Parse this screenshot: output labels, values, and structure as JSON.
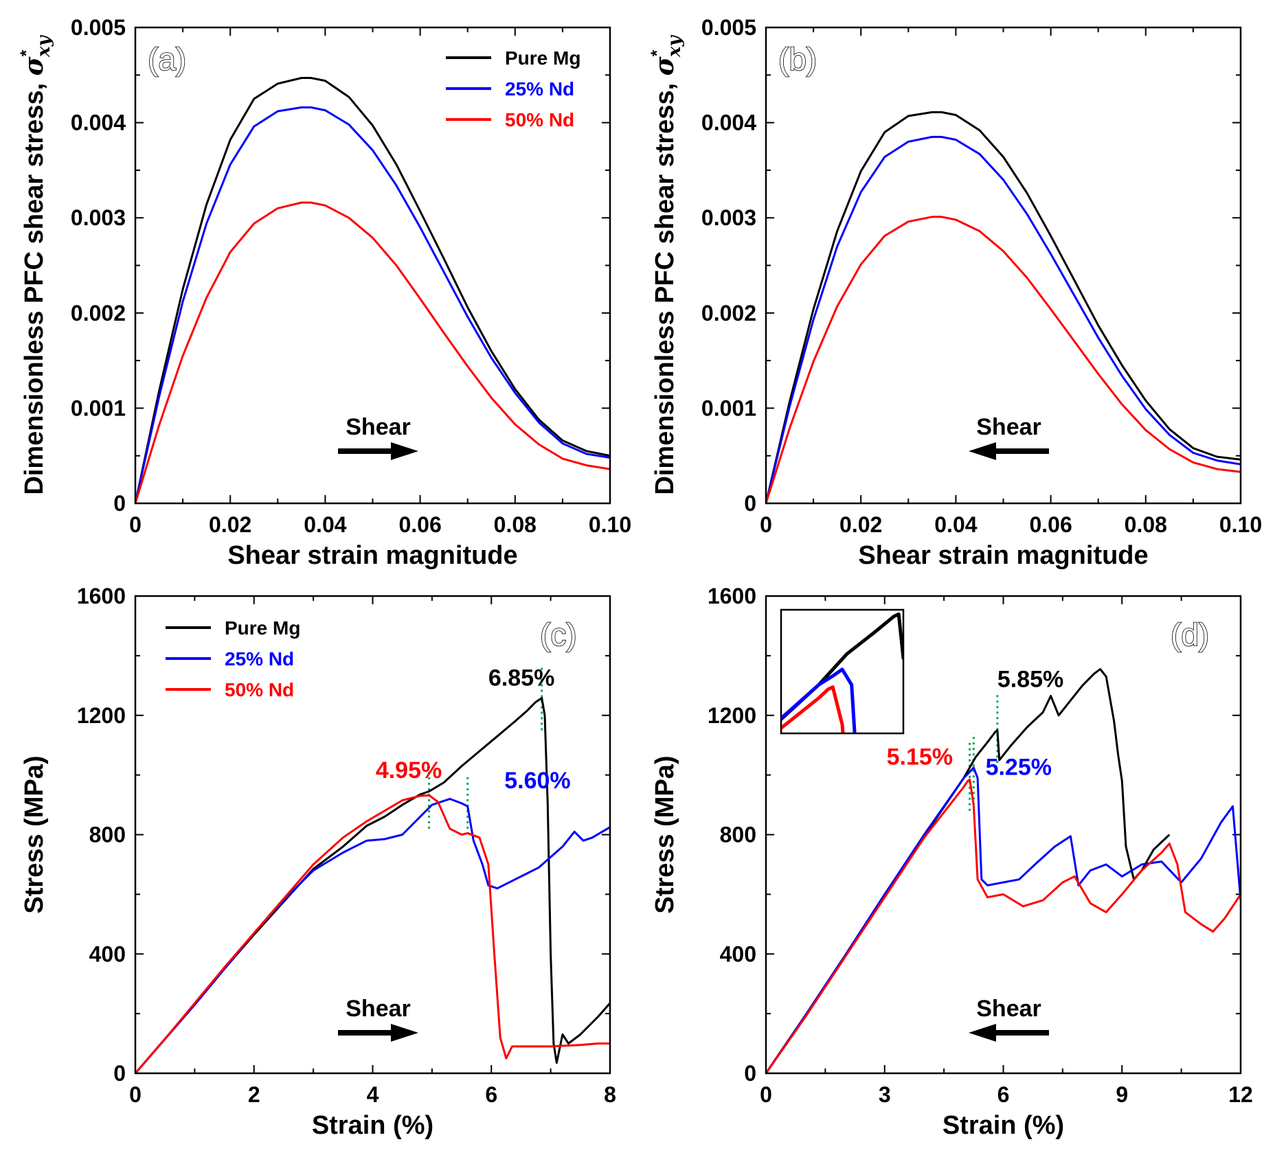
{
  "figure": {
    "colors": {
      "pure_mg": "#000000",
      "nd25": "#0000ff",
      "nd50": "#ff0000",
      "guide": "#00a550"
    }
  },
  "chart_data": [
    {
      "id": "a",
      "type": "line",
      "panel_label": "(a)",
      "xlabel": "Shear strain magnitude",
      "ylabel": "Dimensionless PFC shear stress, σ*xy",
      "ylabel_main": "Dimensionless PFC shear stress, ",
      "ylabel_sym": "σ",
      "ylabel_sup": "*",
      "ylabel_sub": "xy",
      "xlim": [
        0,
        0.1
      ],
      "ylim": [
        0,
        0.005
      ],
      "xticks": [
        0,
        0.02,
        0.04,
        0.06,
        0.08,
        0.1
      ],
      "xtick_labels": [
        "0",
        "0.02",
        "0.04",
        "0.06",
        "0.08",
        "0.10"
      ],
      "yticks": [
        0,
        0.001,
        0.002,
        0.003,
        0.004,
        0.005
      ],
      "ytick_labels": [
        "0",
        "0.001",
        "0.002",
        "0.003",
        "0.004",
        "0.005"
      ],
      "legend": {
        "position": "top-right",
        "entries": [
          "Pure Mg",
          "25% Nd",
          "50% Nd"
        ]
      },
      "shear_arrow": {
        "label": "Shear",
        "direction": "right"
      },
      "series": [
        {
          "name": "Pure Mg",
          "color": "#000000",
          "x": [
            0,
            0.005,
            0.01,
            0.015,
            0.02,
            0.025,
            0.03,
            0.035,
            0.037,
            0.04,
            0.045,
            0.05,
            0.055,
            0.06,
            0.065,
            0.07,
            0.075,
            0.08,
            0.085,
            0.09,
            0.095,
            0.1
          ],
          "y": [
            0,
            0.00118,
            0.00225,
            0.00314,
            0.00382,
            0.00425,
            0.00441,
            0.00447,
            0.00447,
            0.00444,
            0.00427,
            0.00397,
            0.00356,
            0.00307,
            0.00257,
            0.00206,
            0.0016,
            0.0012,
            0.00088,
            0.00066,
            0.00055,
            0.0005
          ]
        },
        {
          "name": "25% Nd",
          "color": "#0000ff",
          "x": [
            0,
            0.005,
            0.01,
            0.015,
            0.02,
            0.025,
            0.03,
            0.035,
            0.037,
            0.04,
            0.045,
            0.05,
            0.055,
            0.06,
            0.065,
            0.07,
            0.075,
            0.08,
            0.085,
            0.09,
            0.095,
            0.1
          ],
          "y": [
            0,
            0.00112,
            0.00212,
            0.00294,
            0.00356,
            0.00396,
            0.00412,
            0.00416,
            0.00416,
            0.00413,
            0.00398,
            0.00371,
            0.00334,
            0.0029,
            0.00243,
            0.00196,
            0.00153,
            0.00116,
            0.00085,
            0.00063,
            0.00052,
            0.00048
          ]
        },
        {
          "name": "50% Nd",
          "color": "#ff0000",
          "x": [
            0,
            0.005,
            0.01,
            0.015,
            0.02,
            0.025,
            0.03,
            0.035,
            0.037,
            0.04,
            0.045,
            0.05,
            0.055,
            0.06,
            0.065,
            0.07,
            0.075,
            0.08,
            0.085,
            0.09,
            0.095,
            0.1
          ],
          "y": [
            0,
            0.00082,
            0.00155,
            0.00216,
            0.00264,
            0.00294,
            0.0031,
            0.00316,
            0.00316,
            0.00313,
            0.003,
            0.00279,
            0.0025,
            0.00215,
            0.00179,
            0.00144,
            0.00111,
            0.00083,
            0.00062,
            0.00047,
            0.0004,
            0.00036
          ]
        }
      ]
    },
    {
      "id": "b",
      "type": "line",
      "panel_label": "(b)",
      "xlabel": "Shear strain magnitude",
      "ylabel": "Dimensionless PFC shear stress, σ*xy",
      "ylabel_main": "Dimensionless PFC shear stress, ",
      "ylabel_sym": "σ",
      "ylabel_sup": "*",
      "ylabel_sub": "xy",
      "xlim": [
        0,
        0.1
      ],
      "ylim": [
        0,
        0.005
      ],
      "xticks": [
        0,
        0.02,
        0.04,
        0.06,
        0.08,
        0.1
      ],
      "xtick_labels": [
        "0",
        "0.02",
        "0.04",
        "0.06",
        "0.08",
        "0.10"
      ],
      "yticks": [
        0,
        0.001,
        0.002,
        0.003,
        0.004,
        0.005
      ],
      "ytick_labels": [
        "0",
        "0.001",
        "0.002",
        "0.003",
        "0.004",
        "0.005"
      ],
      "shear_arrow": {
        "label": "Shear",
        "direction": "left"
      },
      "series": [
        {
          "name": "Pure Mg",
          "color": "#000000",
          "x": [
            0,
            0.005,
            0.01,
            0.015,
            0.02,
            0.025,
            0.03,
            0.035,
            0.037,
            0.04,
            0.045,
            0.05,
            0.055,
            0.06,
            0.065,
            0.07,
            0.075,
            0.08,
            0.085,
            0.09,
            0.095,
            0.1
          ],
          "y": [
            0,
            0.00107,
            0.00204,
            0.00286,
            0.00349,
            0.0039,
            0.00407,
            0.00411,
            0.00411,
            0.00408,
            0.00392,
            0.00364,
            0.00326,
            0.00281,
            0.00234,
            0.00187,
            0.00145,
            0.00108,
            0.00078,
            0.00058,
            0.00049,
            0.00046
          ]
        },
        {
          "name": "25% Nd",
          "color": "#0000ff",
          "x": [
            0,
            0.005,
            0.01,
            0.015,
            0.02,
            0.025,
            0.03,
            0.035,
            0.037,
            0.04,
            0.045,
            0.05,
            0.055,
            0.06,
            0.065,
            0.07,
            0.075,
            0.08,
            0.085,
            0.09,
            0.095,
            0.1
          ],
          "y": [
            0,
            0.00102,
            0.00193,
            0.0027,
            0.00327,
            0.00364,
            0.0038,
            0.00385,
            0.00385,
            0.00382,
            0.00367,
            0.0034,
            0.00304,
            0.00262,
            0.00218,
            0.00174,
            0.00134,
            0.00099,
            0.00072,
            0.00053,
            0.00045,
            0.00041
          ]
        },
        {
          "name": "50% Nd",
          "color": "#ff0000",
          "x": [
            0,
            0.005,
            0.01,
            0.015,
            0.02,
            0.025,
            0.03,
            0.035,
            0.037,
            0.04,
            0.045,
            0.05,
            0.055,
            0.06,
            0.065,
            0.07,
            0.075,
            0.08,
            0.085,
            0.09,
            0.095,
            0.1
          ],
          "y": [
            0,
            0.00079,
            0.00149,
            0.00207,
            0.00251,
            0.00281,
            0.00296,
            0.00301,
            0.00301,
            0.00298,
            0.00286,
            0.00265,
            0.00237,
            0.00204,
            0.0017,
            0.00136,
            0.00104,
            0.00077,
            0.00057,
            0.00043,
            0.00036,
            0.00033
          ]
        }
      ]
    },
    {
      "id": "c",
      "type": "line",
      "panel_label": "(c)",
      "xlabel": "Strain (%)",
      "ylabel": "Stress (MPa)",
      "xlim": [
        0,
        8
      ],
      "ylim": [
        0,
        1600
      ],
      "xticks": [
        0,
        2,
        4,
        6,
        8
      ],
      "xtick_labels": [
        "0",
        "2",
        "4",
        "6",
        "8"
      ],
      "yticks": [
        0,
        400,
        800,
        1200,
        1600
      ],
      "ytick_labels": [
        "0",
        "400",
        "800",
        "1200",
        "1600"
      ],
      "legend": {
        "position": "top-left",
        "entries": [
          "Pure Mg",
          "25% Nd",
          "50% Nd"
        ]
      },
      "shear_arrow": {
        "label": "Shear",
        "direction": "right"
      },
      "annotations": [
        {
          "text": "6.85%",
          "color": "#000000",
          "x": 6.85,
          "y_from": 1150,
          "y_to": 1360,
          "label_x": 5.95,
          "label_y": 1300
        },
        {
          "text": "4.95%",
          "color": "#ff0000",
          "x": 4.95,
          "y_from": 820,
          "y_to": 1040,
          "label_x": 4.05,
          "label_y": 990
        },
        {
          "text": "5.60%",
          "color": "#0000ff",
          "x": 5.6,
          "y_from": 820,
          "y_to": 1000,
          "label_x": 6.22,
          "label_y": 955
        }
      ],
      "series": [
        {
          "name": "Pure Mg",
          "color": "#000000",
          "x": [
            0,
            0.5,
            1,
            1.5,
            2,
            2.5,
            3,
            3.5,
            3.9,
            4.2,
            4.5,
            4.8,
            4.95,
            5.2,
            5.5,
            5.8,
            6.1,
            6.4,
            6.6,
            6.75,
            6.85,
            6.9,
            6.95,
            7.0,
            7.05,
            7.1,
            7.2,
            7.3,
            7.5,
            7.8,
            8.0
          ],
          "y": [
            0,
            115,
            230,
            350,
            465,
            575,
            685,
            760,
            830,
            860,
            900,
            935,
            945,
            975,
            1030,
            1080,
            1130,
            1180,
            1215,
            1245,
            1258,
            1200,
            900,
            400,
            100,
            35,
            130,
            100,
            130,
            190,
            235
          ]
        },
        {
          "name": "25% Nd",
          "color": "#0000ff",
          "x": [
            0,
            0.5,
            1,
            1.5,
            2,
            2.5,
            3,
            3.5,
            3.9,
            4.2,
            4.5,
            4.8,
            5.0,
            5.3,
            5.5,
            5.6,
            5.7,
            5.85,
            5.95,
            6.1,
            6.4,
            6.8,
            7.2,
            7.4,
            7.55,
            7.7,
            8.0
          ],
          "y": [
            0,
            115,
            230,
            350,
            470,
            580,
            680,
            740,
            780,
            785,
            800,
            860,
            900,
            920,
            905,
            895,
            780,
            700,
            630,
            620,
            650,
            690,
            760,
            810,
            780,
            790,
            825
          ]
        },
        {
          "name": "50% Nd",
          "color": "#ff0000",
          "x": [
            0,
            0.5,
            1,
            1.5,
            2,
            2.5,
            3,
            3.5,
            3.9,
            4.2,
            4.5,
            4.8,
            4.95,
            5.1,
            5.3,
            5.5,
            5.6,
            5.8,
            5.95,
            6.05,
            6.15,
            6.25,
            6.35,
            6.5,
            7.0,
            7.5,
            7.8,
            8.0
          ],
          "y": [
            0,
            115,
            235,
            355,
            470,
            585,
            700,
            790,
            845,
            880,
            915,
            930,
            932,
            910,
            820,
            800,
            805,
            790,
            700,
            400,
            120,
            50,
            90,
            90,
            90,
            95,
            100,
            100
          ]
        }
      ]
    },
    {
      "id": "d",
      "type": "line",
      "panel_label": "(d)",
      "xlabel": "Strain (%)",
      "ylabel": "Stress (MPa)",
      "xlim": [
        0,
        12
      ],
      "ylim": [
        0,
        1600
      ],
      "xticks": [
        0,
        3,
        6,
        9,
        12
      ],
      "xtick_labels": [
        "0",
        "3",
        "6",
        "9",
        "12"
      ],
      "yticks": [
        0,
        400,
        800,
        1200,
        1600
      ],
      "ytick_labels": [
        "0",
        "400",
        "800",
        "1200",
        "1600"
      ],
      "shear_arrow": {
        "label": "Shear",
        "direction": "left"
      },
      "inset": true,
      "annotations": [
        {
          "text": "5.85%",
          "color": "#000000",
          "x": 5.85,
          "y_from": 1040,
          "y_to": 1270,
          "label_x": 5.85,
          "label_y": 1295
        },
        {
          "text": "5.15%",
          "color": "#ff0000",
          "x": 5.15,
          "y_from": 880,
          "y_to": 1110,
          "label_x": 3.05,
          "label_y": 1035
        },
        {
          "text": "5.25%",
          "color": "#0000ff",
          "x": 5.25,
          "y_from": 900,
          "y_to": 1140,
          "label_x": 5.55,
          "label_y": 1000
        }
      ],
      "series": [
        {
          "name": "Pure Mg",
          "color": "#000000",
          "x": [
            0,
            1,
            2,
            3,
            4,
            5,
            5.3,
            5.6,
            5.8,
            5.85,
            5.9,
            6.2,
            6.6,
            7.0,
            7.2,
            7.4,
            7.7,
            8.0,
            8.3,
            8.45,
            8.6,
            8.8,
            8.9,
            9.0,
            9.1,
            9.3,
            9.5,
            9.8,
            10.2
          ],
          "y": [
            0,
            195,
            395,
            600,
            795,
            990,
            1060,
            1110,
            1145,
            1150,
            1050,
            1100,
            1160,
            1210,
            1265,
            1200,
            1250,
            1300,
            1340,
            1355,
            1330,
            1180,
            1070,
            980,
            760,
            650,
            680,
            750,
            800
          ]
        },
        {
          "name": "25% Nd",
          "color": "#0000ff",
          "x": [
            0,
            1,
            2,
            3,
            4,
            5,
            5.15,
            5.25,
            5.35,
            5.45,
            5.6,
            6.0,
            6.4,
            6.8,
            7.3,
            7.7,
            7.9,
            8.2,
            8.6,
            9.0,
            9.5,
            10.0,
            10.5,
            11.0,
            11.5,
            11.8,
            12.0
          ],
          "y": [
            0,
            195,
            395,
            600,
            800,
            990,
            1010,
            1025,
            990,
            650,
            630,
            640,
            650,
            700,
            760,
            795,
            630,
            680,
            700,
            660,
            700,
            710,
            640,
            720,
            840,
            895,
            580
          ]
        },
        {
          "name": "50% Nd",
          "color": "#ff0000",
          "x": [
            0,
            1,
            2,
            3,
            4,
            5,
            5.1,
            5.15,
            5.25,
            5.35,
            5.6,
            6.0,
            6.5,
            7.0,
            7.5,
            7.8,
            8.2,
            8.6,
            9.0,
            9.5,
            10.0,
            10.2,
            10.4,
            10.6,
            11.0,
            11.3,
            11.6,
            12.0
          ],
          "y": [
            0,
            190,
            390,
            590,
            790,
            960,
            980,
            985,
            900,
            650,
            590,
            600,
            560,
            580,
            640,
            660,
            570,
            540,
            600,
            680,
            740,
            770,
            700,
            540,
            500,
            475,
            520,
            600
          ]
        }
      ]
    }
  ]
}
